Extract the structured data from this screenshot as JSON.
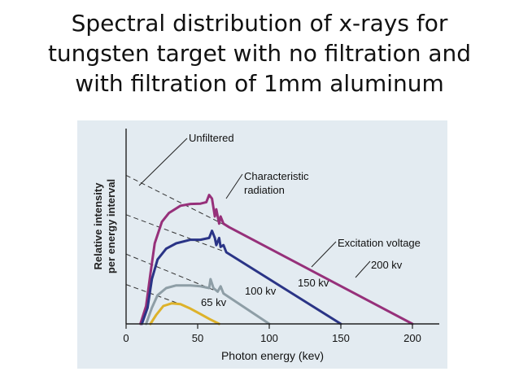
{
  "slide": {
    "title_lines": [
      "Spectral distribution of x-rays for",
      "tungsten target with no filtration and",
      "with filtration of 1mm aluminum"
    ]
  },
  "colors": {
    "background": "#ffffff",
    "figure_background": "#e3ebf1",
    "series_200kv": "#96307a",
    "series_150kv": "#2a3486",
    "series_100kv": "#8e9ea6",
    "series_65kv": "#ddb22a",
    "dashed": "#333333",
    "axis": "#222222"
  },
  "chart_data": {
    "type": "line",
    "xlabel": "Photon energy (kev)",
    "ylabel_lines": [
      "Relative intensity",
      "per energy interval"
    ],
    "xlim": [
      0,
      220
    ],
    "ylim": [
      0,
      1
    ],
    "xticks": [
      0,
      50,
      100,
      150,
      200
    ],
    "grid": false,
    "legend": "none",
    "series": [
      {
        "name": "200 kv",
        "color": "#96307a",
        "points": [
          [
            10,
            0
          ],
          [
            14,
            0.1
          ],
          [
            17,
            0.28
          ],
          [
            20,
            0.45
          ],
          [
            25,
            0.57
          ],
          [
            30,
            0.62
          ],
          [
            38,
            0.66
          ],
          [
            45,
            0.67
          ],
          [
            52,
            0.672
          ],
          [
            56,
            0.68
          ],
          [
            58,
            0.72
          ],
          [
            60,
            0.7
          ],
          [
            62,
            0.6
          ],
          [
            63,
            0.64
          ],
          [
            65,
            0.56
          ],
          [
            66,
            0.6
          ],
          [
            68,
            0.56
          ],
          [
            72,
            0.54
          ],
          [
            200,
            0
          ]
        ],
        "dashed_extension": [
          [
            0,
            0.83
          ],
          [
            72,
            0.54
          ]
        ],
        "annotation_near": 200
      },
      {
        "name": "150 kv",
        "color": "#2a3486",
        "points": [
          [
            11,
            0
          ],
          [
            15,
            0.09
          ],
          [
            18,
            0.25
          ],
          [
            22,
            0.36
          ],
          [
            28,
            0.42
          ],
          [
            35,
            0.45
          ],
          [
            45,
            0.47
          ],
          [
            52,
            0.47
          ],
          [
            58,
            0.48
          ],
          [
            60,
            0.52
          ],
          [
            62,
            0.48
          ],
          [
            63,
            0.44
          ],
          [
            65,
            0.48
          ],
          [
            66,
            0.43
          ],
          [
            68,
            0.44
          ],
          [
            70,
            0.4
          ],
          [
            150,
            0
          ]
        ],
        "dashed_extension": [
          [
            0,
            0.61
          ],
          [
            70,
            0.4
          ]
        ]
      },
      {
        "name": "100 kv",
        "color": "#8e9ea6",
        "points": [
          [
            14,
            0
          ],
          [
            18,
            0.09
          ],
          [
            22,
            0.16
          ],
          [
            28,
            0.2
          ],
          [
            35,
            0.215
          ],
          [
            45,
            0.215
          ],
          [
            52,
            0.21
          ],
          [
            58,
            0.2
          ],
          [
            59,
            0.25
          ],
          [
            61,
            0.2
          ],
          [
            64,
            0.18
          ],
          [
            66,
            0.21
          ],
          [
            68,
            0.17
          ],
          [
            100,
            0
          ]
        ],
        "dashed_extension": [
          [
            0,
            0.39
          ],
          [
            64,
            0.18
          ]
        ]
      },
      {
        "name": "65 kv",
        "color": "#ddb22a",
        "points": [
          [
            17,
            0
          ],
          [
            21,
            0.05
          ],
          [
            26,
            0.1
          ],
          [
            32,
            0.115
          ],
          [
            38,
            0.11
          ],
          [
            45,
            0.085
          ],
          [
            52,
            0.055
          ],
          [
            58,
            0.028
          ],
          [
            65,
            0
          ]
        ],
        "dashed_extension": [
          [
            0,
            0.22
          ],
          [
            38,
            0.11
          ]
        ]
      }
    ],
    "annotations": [
      {
        "text": "Unfiltered",
        "lines": [
          "Unfiltered"
        ]
      },
      {
        "text": "Characteristic radiation",
        "lines": [
          "Characteristic",
          "radiation"
        ]
      },
      {
        "text": "Excitation voltage",
        "lines": [
          "Excitation voltage"
        ]
      },
      {
        "text": "200 kv",
        "lines": [
          "200 kv"
        ]
      },
      {
        "text": "150 kv",
        "lines": [
          "150 kv"
        ]
      },
      {
        "text": "100 kv",
        "lines": [
          "100 kv"
        ]
      },
      {
        "text": "65 kv",
        "lines": [
          "65 kv"
        ]
      }
    ]
  }
}
